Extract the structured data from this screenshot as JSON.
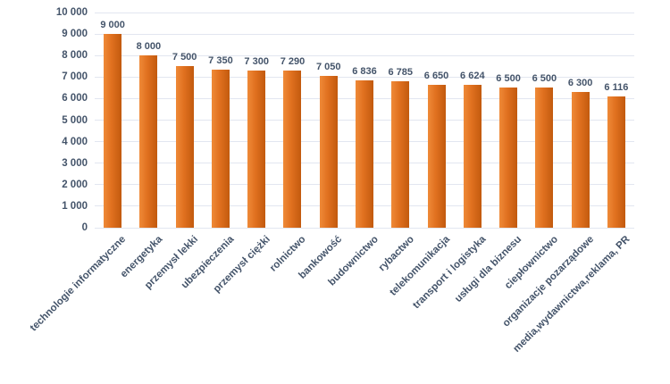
{
  "chart_data": {
    "type": "bar",
    "title": "",
    "xlabel": "",
    "ylabel": "",
    "categories": [
      "technologie informatyczne",
      "energetyka",
      "przemysł lekki",
      "ubezpieczenia",
      "przemysł ciężki",
      "rolnictwo",
      "bankowość",
      "budownictwo",
      "rybactwo",
      "telekomunikacja",
      "transport i logistyka",
      "usługi dla biznesu",
      "ciepłownictwo",
      "organizacje pozarządowe",
      "media,wydawnictwa,reklama, PR"
    ],
    "values": [
      9000,
      8000,
      7500,
      7350,
      7300,
      7290,
      7050,
      6836,
      6785,
      6650,
      6624,
      6500,
      6500,
      6300,
      6116
    ],
    "value_labels": [
      "9 000",
      "8 000",
      "7 500",
      "7 350",
      "7 300",
      "7 290",
      "7 050",
      "6 836",
      "6 785",
      "6 650",
      "6 624",
      "6 500",
      "6 500",
      "6 300",
      "6 116"
    ],
    "y_ticks": [
      0,
      1000,
      2000,
      3000,
      4000,
      5000,
      6000,
      7000,
      8000,
      9000,
      10000
    ],
    "y_tick_labels": [
      "0",
      "1 000",
      "2 000",
      "3 000",
      "4 000",
      "5 000",
      "6 000",
      "7 000",
      "8 000",
      "9 000",
      "10 000"
    ],
    "ylim": [
      0,
      10000
    ],
    "grid": true,
    "legend": "none",
    "colors": {
      "bar_gradient_left": "#ef8a38",
      "bar_gradient_mid": "#e0701f",
      "bar_gradient_right": "#c25a0e",
      "gridline": "#e2e6f0",
      "text": "#44546a",
      "background": "#ffffff"
    }
  }
}
